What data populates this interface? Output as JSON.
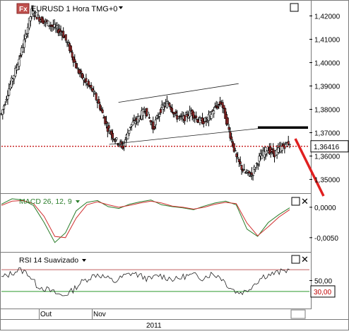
{
  "chart_data": [
    {
      "type": "line",
      "subtype": "candlestick",
      "title": "EURUSD 1 Hora TMG+0",
      "price_axis": {
        "ylim": [
          1.345,
          1.425
        ],
        "ticks": [
          "1,42000",
          "1,41000",
          "1,40000",
          "1,39000",
          "1,38000",
          "1,37000",
          "1,36000",
          "1,35000"
        ]
      },
      "current_price": {
        "value": 1.36416,
        "label": "1,36416"
      },
      "close_series": [
        1.378,
        1.389,
        1.398,
        1.409,
        1.422,
        1.419,
        1.417,
        1.415,
        1.413,
        1.406,
        1.397,
        1.392,
        1.388,
        1.381,
        1.372,
        1.367,
        1.364,
        1.373,
        1.376,
        1.38,
        1.372,
        1.38,
        1.383,
        1.377,
        1.376,
        1.379,
        1.375,
        1.375,
        1.38,
        1.383,
        1.371,
        1.359,
        1.353,
        1.352,
        1.359,
        1.363,
        1.361,
        1.364,
        1.366
      ],
      "annotations": [
        {
          "type": "channel-upper",
          "from": [
            0.08,
            1.383
          ],
          "to": [
            0.52,
            1.391
          ],
          "color": "#202020"
        },
        {
          "type": "channel-lower",
          "from": [
            0.05,
            1.365
          ],
          "to": [
            0.6,
            1.372
          ],
          "color": "#202020"
        },
        {
          "type": "horizontal-line",
          "level": 1.3722,
          "from_x": 0.68,
          "to_x": 0.9,
          "color": "#000000"
        },
        {
          "type": "dotted-level",
          "level": 1.36416,
          "color": "#c00000"
        },
        {
          "type": "arrow",
          "from": [
            0.9,
            1.368
          ],
          "to": [
            0.97,
            1.348
          ],
          "color": "#e02020"
        }
      ]
    },
    {
      "type": "line",
      "title": "MACD 26, 12, 9",
      "ylim": [
        -0.007,
        0.0015
      ],
      "ticks": [
        "0,0000",
        "-0,0050"
      ],
      "series": [
        {
          "name": "MACD",
          "color": "#2a7d2a",
          "values": [
            0.0005,
            0.0014,
            0.0012,
            0.0003,
            -0.0025,
            -0.0058,
            -0.0042,
            -0.0006,
            0.0008,
            0.0011,
            0.0001,
            -0.0002,
            0.0005,
            0.0009,
            0.0012,
            0.0004,
            0.0001,
            -0.0001,
            -0.0004,
            0.0002,
            0.0007,
            0.001,
            0.0004,
            -0.0036,
            -0.0048,
            -0.0025,
            -0.0012,
            -0.0001
          ]
        },
        {
          "name": "Signal",
          "color": "#d03030",
          "values": [
            0.0003,
            0.001,
            0.0011,
            0.0006,
            -0.0015,
            -0.0048,
            -0.005,
            -0.0018,
            0.0004,
            0.0009,
            0.0004,
            0.0,
            0.0003,
            0.0007,
            0.001,
            0.0007,
            0.0002,
            -0.0,
            -0.0003,
            0.0,
            0.0005,
            0.0008,
            0.0006,
            -0.0026,
            -0.0047,
            -0.0032,
            -0.0016,
            -0.0004
          ]
        }
      ]
    },
    {
      "type": "line",
      "title": "RSI 14 Suavizado",
      "ylim": [
        0,
        100
      ],
      "ticks": [
        "50,00"
      ],
      "level": {
        "value": 30,
        "label": "30,00",
        "color": "#2c9a2c"
      },
      "upper_level": {
        "value": 70,
        "color": "#c06060"
      },
      "values": [
        55,
        62,
        70,
        64,
        42,
        35,
        28,
        22,
        30,
        45,
        55,
        62,
        55,
        48,
        58,
        64,
        58,
        52,
        60,
        55,
        52,
        58,
        60,
        55,
        62,
        58,
        40,
        28,
        30,
        45,
        58,
        62,
        66,
        70
      ]
    }
  ],
  "x_axis": {
    "labels": [
      "Out",
      "Nov"
    ],
    "year": "2011"
  },
  "ui": {
    "badge_text": "Fx"
  }
}
